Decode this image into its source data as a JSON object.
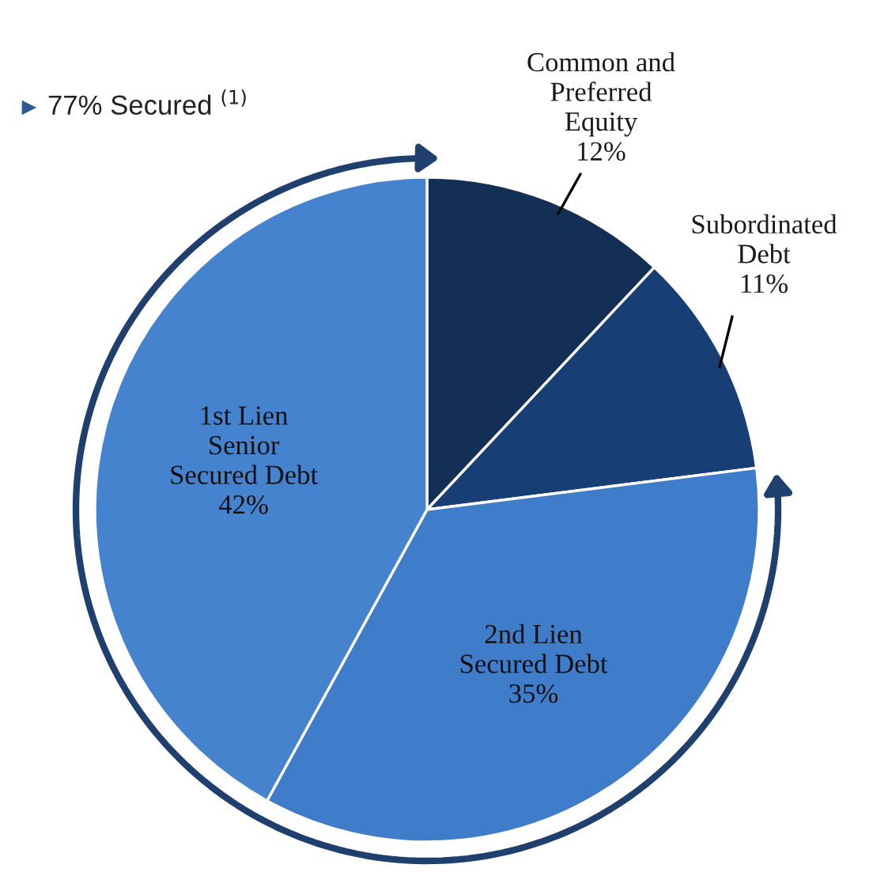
{
  "chart_data": {
    "type": "pie",
    "categories": [
      "Common and\nPreferred\nEquity",
      "Subordinated\nDebt",
      "2nd Lien\nSecured Debt",
      "1st Lien\nSenior\nSecured Debt"
    ],
    "values": [
      12,
      11,
      35,
      42
    ],
    "colors": [
      "#132f55",
      "#173f76",
      "#3f7dcb",
      "#4683cf"
    ],
    "value_labels": [
      "12%",
      "11%",
      "35%",
      "42%"
    ],
    "annotations": [
      "77% Secured $^{(1)}$"
    ]
  }
}
